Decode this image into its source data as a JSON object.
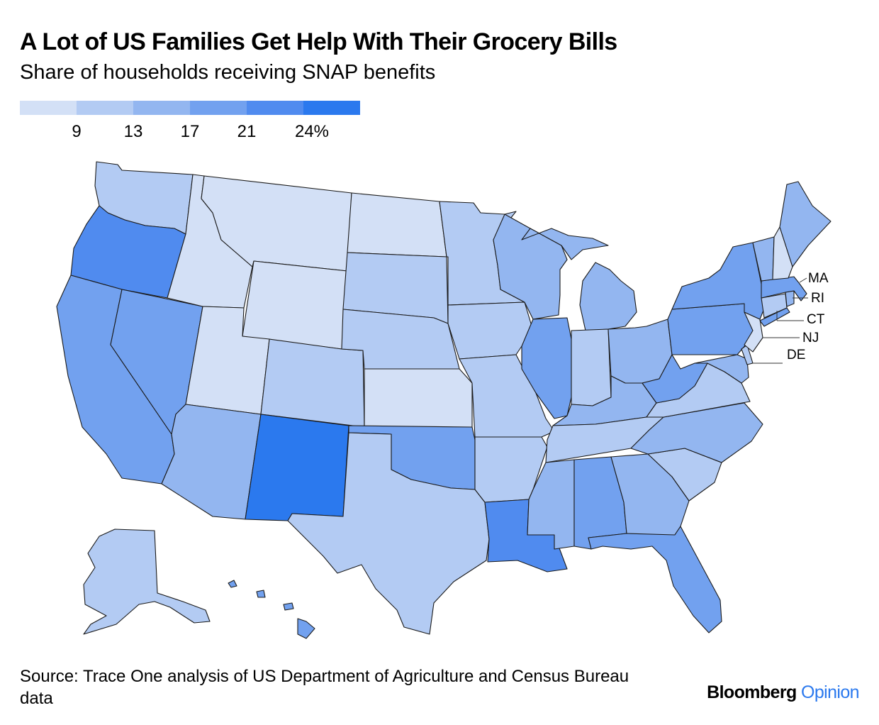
{
  "header": {
    "title": "A Lot of US Families Get Help With Their Grocery Bills",
    "subtitle": "Share of households receiving SNAP benefits"
  },
  "legend": {
    "colors": [
      "#d3e0f6",
      "#b3cbf3",
      "#93b6f0",
      "#72a1ef",
      "#508bef",
      "#2b79ee"
    ],
    "ticks": [
      "9",
      "13",
      "17",
      "21",
      "24%"
    ]
  },
  "callouts": {
    "ma": "MA",
    "ri": "RI",
    "ct": "CT",
    "nj": "NJ",
    "de": "DE"
  },
  "footer": {
    "source": "Source: Trace One analysis of US Department of Agriculture and Census Bureau data",
    "brand_main": "Bloomberg",
    "brand_sub": "Opinion"
  }
}
